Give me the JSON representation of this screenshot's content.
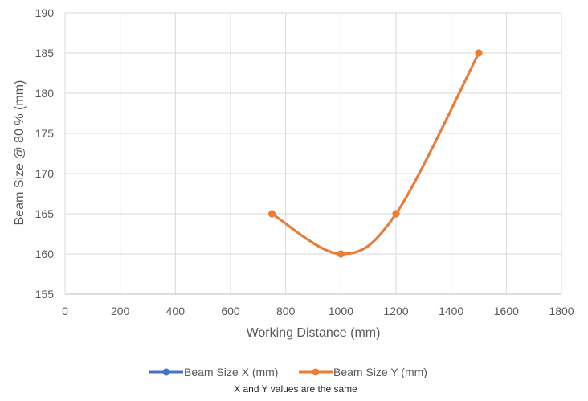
{
  "chart_data": {
    "type": "line",
    "xlabel": "Working Distance (mm)",
    "ylabel": "Beam Size @ 80 % (mm)",
    "xlim": [
      0,
      1800
    ],
    "ylim": [
      155,
      190
    ],
    "xticks": [
      0,
      200,
      400,
      600,
      800,
      1000,
      1200,
      1400,
      1600,
      1800
    ],
    "yticks": [
      155,
      160,
      165,
      170,
      175,
      180,
      185,
      190
    ],
    "grid": true,
    "smooth": true,
    "legend_position": "bottom",
    "series": [
      {
        "name": "Beam Size X (mm)",
        "color": "#4472C4",
        "x": [
          750,
          1000,
          1200,
          1500
        ],
        "y": [
          165,
          160,
          165,
          185
        ]
      },
      {
        "name": "Beam Size Y (mm)",
        "color": "#ED7D31",
        "x": [
          750,
          1000,
          1200,
          1500
        ],
        "y": [
          165,
          160,
          165,
          185
        ]
      }
    ],
    "note": "X and Y values are the same"
  }
}
